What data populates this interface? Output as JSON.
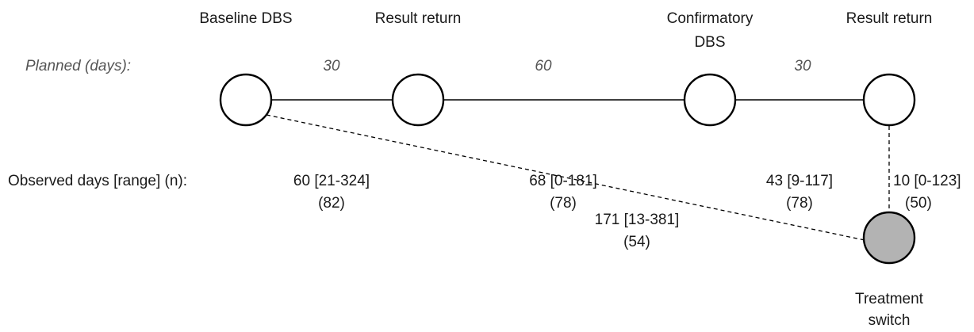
{
  "stages": {
    "baseline": "Baseline DBS",
    "result_return_1": "Result return",
    "confirmatory_line1": "Confirmatory",
    "confirmatory_line2": "DBS",
    "result_return_2": "Result return",
    "treatment_line1": "Treatment",
    "treatment_line2": "switch"
  },
  "planned": {
    "label": "Planned (days):",
    "values": [
      "30",
      "60",
      "30"
    ]
  },
  "observed": {
    "label": "Observed days [range] (n):",
    "items": [
      {
        "range": "60 [21-324]",
        "n": "(82)"
      },
      {
        "range": "68 [0-181]",
        "n": "(78)"
      },
      {
        "range": "43 [9-117]",
        "n": "(78)"
      },
      {
        "range": "10 [0-123]",
        "n": "(50)"
      }
    ],
    "diagonal": {
      "range": "171 [13-381]",
      "n": "(54)"
    }
  },
  "colors": {
    "node_fill": "#ffffff",
    "switch_fill": "#b3b3b3",
    "stroke": "#000000"
  }
}
